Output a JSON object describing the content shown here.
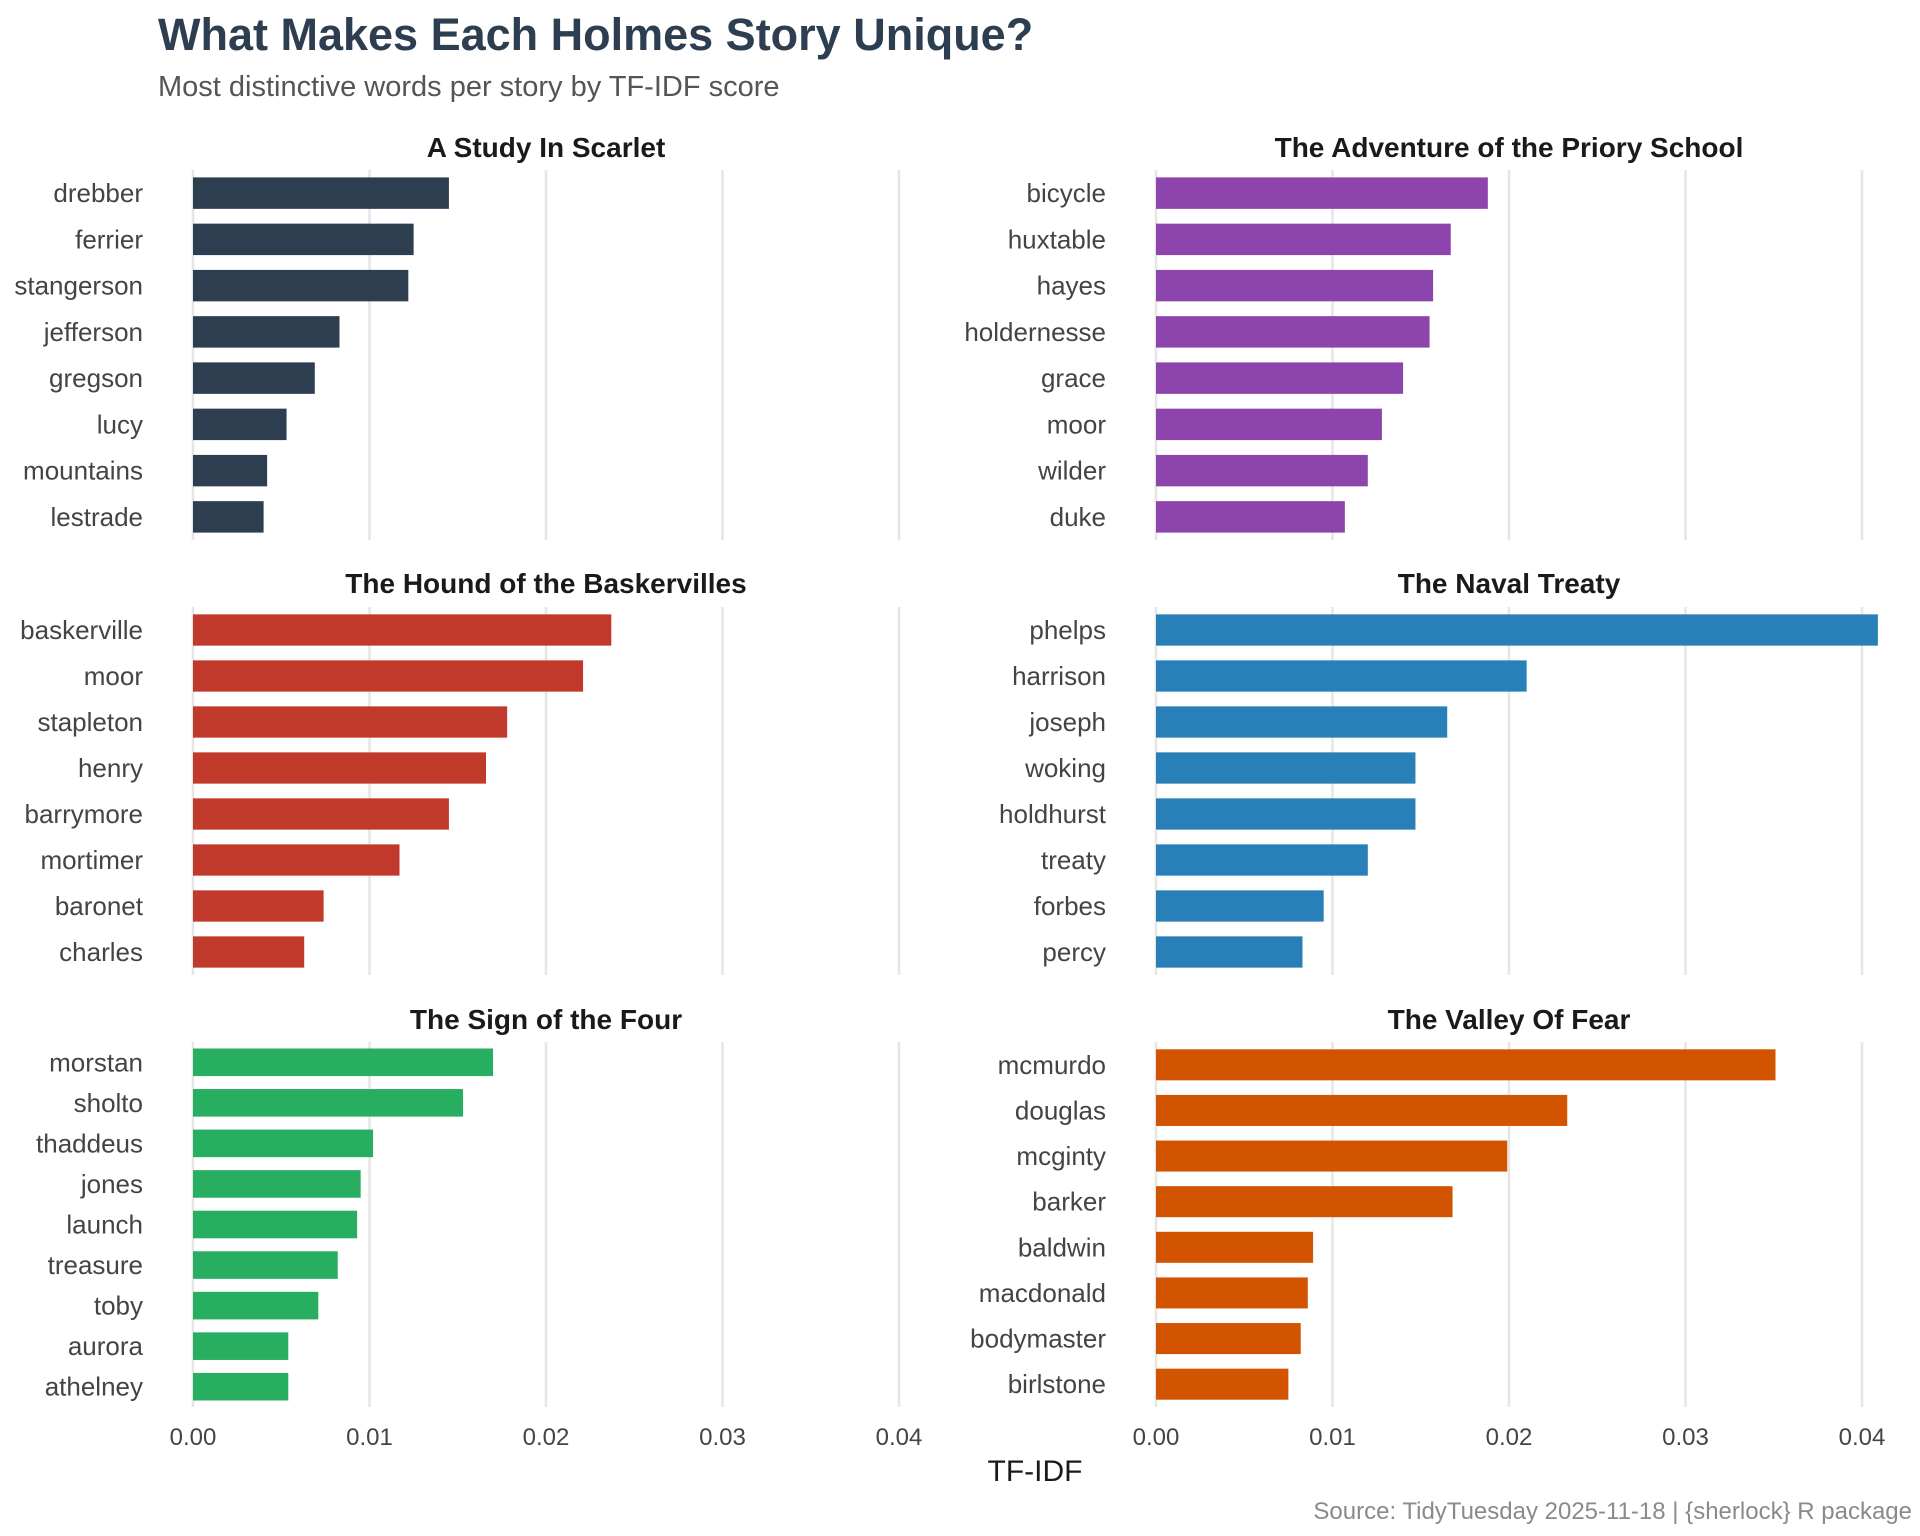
{
  "title": "What Makes Each Holmes Story Unique?",
  "subtitle": "Most distinctive words per story by TF-IDF score",
  "caption": "Source: TidyTuesday 2025-11-18 | {sherlock} R package",
  "chart_data": {
    "type": "bar",
    "orientation": "horizontal",
    "xlabel": "TF-IDF",
    "xlim": [
      0,
      0.04
    ],
    "xticks": [
      0,
      0.01,
      0.02,
      0.03,
      0.04
    ],
    "xtick_labels": [
      "0.00",
      "0.01",
      "0.02",
      "0.03",
      "0.04"
    ],
    "panels": [
      {
        "title": "A Study In Scarlet",
        "color": "#2c3e50",
        "categories": [
          "drebber",
          "ferrier",
          "stangerson",
          "jefferson",
          "gregson",
          "lucy",
          "mountains",
          "lestrade"
        ],
        "values": [
          0.0145,
          0.0125,
          0.0122,
          0.0083,
          0.0069,
          0.0053,
          0.0042,
          0.004
        ]
      },
      {
        "title": "The Adventure of the Priory School",
        "color": "#8e44ad",
        "categories": [
          "bicycle",
          "huxtable",
          "hayes",
          "holdernesse",
          "grace",
          "moor",
          "wilder",
          "duke"
        ],
        "values": [
          0.0188,
          0.0167,
          0.0157,
          0.0155,
          0.014,
          0.0128,
          0.012,
          0.0107
        ]
      },
      {
        "title": "The Hound of the Baskervilles",
        "color": "#c0392b",
        "categories": [
          "baskerville",
          "moor",
          "stapleton",
          "henry",
          "barrymore",
          "mortimer",
          "baronet",
          "charles"
        ],
        "values": [
          0.0237,
          0.0221,
          0.0178,
          0.0166,
          0.0145,
          0.0117,
          0.0074,
          0.0063
        ]
      },
      {
        "title": "The Naval Treaty",
        "color": "#2980b9",
        "categories": [
          "phelps",
          "harrison",
          "joseph",
          "woking",
          "holdhurst",
          "treaty",
          "forbes",
          "percy"
        ],
        "values": [
          0.0409,
          0.021,
          0.0165,
          0.0147,
          0.0147,
          0.012,
          0.0095,
          0.0083
        ]
      },
      {
        "title": "The Sign of the Four",
        "color": "#27ae60",
        "categories": [
          "morstan",
          "sholto",
          "thaddeus",
          "jones",
          "launch",
          "treasure",
          "toby",
          "aurora",
          "athelney"
        ],
        "values": [
          0.017,
          0.0153,
          0.0102,
          0.0095,
          0.0093,
          0.0082,
          0.0071,
          0.0054,
          0.0054
        ]
      },
      {
        "title": "The Valley Of Fear",
        "color": "#d35400",
        "categories": [
          "mcmurdo",
          "douglas",
          "mcginty",
          "barker",
          "baldwin",
          "macdonald",
          "bodymaster",
          "birlstone"
        ],
        "values": [
          0.0351,
          0.0233,
          0.0199,
          0.0168,
          0.0089,
          0.0086,
          0.0082,
          0.0075
        ]
      }
    ]
  }
}
